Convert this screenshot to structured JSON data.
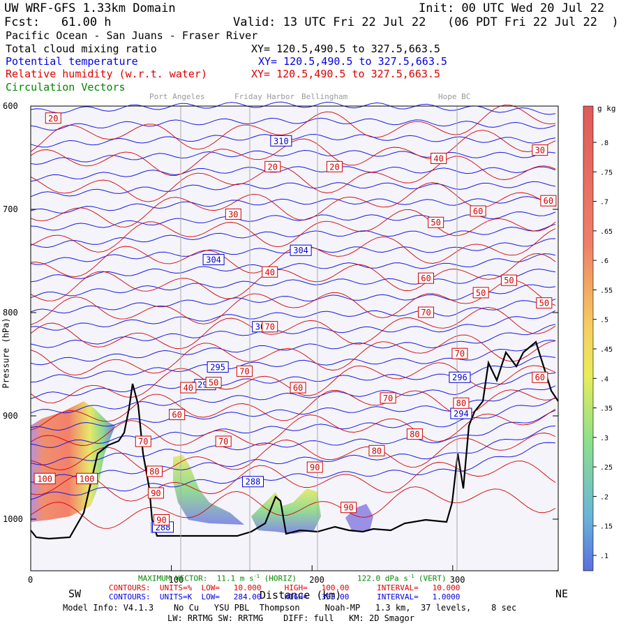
{
  "header": {
    "title": "UW WRF-GFS 1.33km Domain",
    "init": "Init: 00 UTC Wed 20 Jul 22",
    "fcst": "Fcst:   61.00 h",
    "valid": "Valid: 13 UTC Fri 22 Jul 22   (06 PDT Fri 22 Jul 22  )",
    "region": "Pacific Ocean - San Juans - Fraser River",
    "fields": [
      {
        "label": "Total cloud mixing ratio",
        "xy": "XY= 120.5,490.5 to 327.5,663.5",
        "color": "#000000"
      },
      {
        "label": "Potential temperature",
        "xy": "XY= 120.5,490.5 to 327.5,663.5",
        "color": "#0000dd"
      },
      {
        "label": "Relative humidity (w.r.t. water)",
        "xy": "XY= 120.5,490.5 to 327.5,663.5",
        "color": "#dd0000"
      },
      {
        "label": "Circulation Vectors",
        "xy": "",
        "color": "#008800"
      }
    ]
  },
  "places": [
    "Port Angeles",
    "Friday Harbor",
    "Bellingham",
    "Hope BC"
  ],
  "chart_data": {
    "type": "heatmap",
    "xlabel": "Distance (km)",
    "ylabel": "Pressure (hPa)",
    "xlim": [
      0,
      375
    ],
    "ylim": [
      1050,
      600
    ],
    "x_ticks": [
      "0",
      "100",
      "200",
      "300"
    ],
    "y_ticks": [
      "600",
      "700",
      "800",
      "900",
      "1000"
    ],
    "left_dir": "SW",
    "right_dir": "NE",
    "colorbar": {
      "units": "g kg",
      "ticks": [
        ".8",
        ".75",
        ".7",
        ".65",
        ".6",
        ".55",
        ".5",
        ".45",
        ".4",
        ".35",
        ".3",
        ".25",
        ".2",
        ".15",
        ".1"
      ]
    },
    "theta_labels": [
      {
        "x": 178,
        "p": 634,
        "v": "310"
      },
      {
        "x": 192,
        "p": 740,
        "v": "304"
      },
      {
        "x": 130,
        "p": 749,
        "v": "304"
      },
      {
        "x": 165,
        "p": 814,
        "v": "300"
      },
      {
        "x": 133,
        "p": 853,
        "v": "295"
      },
      {
        "x": 124,
        "p": 870,
        "v": "296"
      },
      {
        "x": 305,
        "p": 863,
        "v": "296"
      },
      {
        "x": 306,
        "p": 898,
        "v": "294"
      },
      {
        "x": 158,
        "p": 964,
        "v": "288"
      },
      {
        "x": 94,
        "p": 1008,
        "v": "288"
      }
    ],
    "rh_labels": [
      {
        "x": 16,
        "p": 612,
        "v": "20"
      },
      {
        "x": 172,
        "p": 659,
        "v": "20"
      },
      {
        "x": 216,
        "p": 659,
        "v": "20"
      },
      {
        "x": 290,
        "p": 651,
        "v": "40"
      },
      {
        "x": 362,
        "p": 643,
        "v": "30"
      },
      {
        "x": 318,
        "p": 702,
        "v": "60"
      },
      {
        "x": 368,
        "p": 692,
        "v": "60"
      },
      {
        "x": 144,
        "p": 705,
        "v": "30"
      },
      {
        "x": 288,
        "p": 713,
        "v": "50"
      },
      {
        "x": 170,
        "p": 761,
        "v": "40"
      },
      {
        "x": 281,
        "p": 767,
        "v": "60"
      },
      {
        "x": 340,
        "p": 769,
        "v": "50"
      },
      {
        "x": 320,
        "p": 781,
        "v": "50"
      },
      {
        "x": 365,
        "p": 791,
        "v": "50"
      },
      {
        "x": 281,
        "p": 800,
        "v": "70"
      },
      {
        "x": 170,
        "p": 814,
        "v": "70"
      },
      {
        "x": 305,
        "p": 840,
        "v": "70"
      },
      {
        "x": 152,
        "p": 857,
        "v": "70"
      },
      {
        "x": 130,
        "p": 868,
        "v": "50"
      },
      {
        "x": 112,
        "p": 873,
        "v": "40"
      },
      {
        "x": 190,
        "p": 873,
        "v": "60"
      },
      {
        "x": 254,
        "p": 883,
        "v": "70"
      },
      {
        "x": 362,
        "p": 863,
        "v": "60"
      },
      {
        "x": 306,
        "p": 888,
        "v": "80"
      },
      {
        "x": 104,
        "p": 899,
        "v": "60"
      },
      {
        "x": 273,
        "p": 918,
        "v": "80"
      },
      {
        "x": 137,
        "p": 925,
        "v": "70"
      },
      {
        "x": 80,
        "p": 925,
        "v": "70"
      },
      {
        "x": 246,
        "p": 934,
        "v": "80"
      },
      {
        "x": 88,
        "p": 954,
        "v": "80"
      },
      {
        "x": 202,
        "p": 950,
        "v": "90"
      },
      {
        "x": 10,
        "p": 961,
        "v": "100"
      },
      {
        "x": 40,
        "p": 961,
        "v": "100"
      },
      {
        "x": 89,
        "p": 975,
        "v": "90"
      },
      {
        "x": 226,
        "p": 989,
        "v": "90"
      },
      {
        "x": 93,
        "p": 1001,
        "v": "90"
      }
    ]
  },
  "footer": {
    "max_vector": "MAXIMUM VECTOR:  11.1 m s",
    "max_vector_horiz": " (HORIZ)",
    "max_vector_vert_val": "122.0 dPa s",
    "max_vector_vert": " (VERT)",
    "rh_contours": "CONTOURS:  UNITS=%  LOW=   10.000     HIGH=   100.00      INTERVAL=   10.000",
    "th_contours": "CONTOURS:  UNITS=K  LOW=   284.00     HIGH=   353.00      INTERVAL=   1.0000",
    "model_info": "Model Info: V4.1.3    No Cu   YSU PBL  Thompson     Noah-MP   1.3 km,  37 levels,    8 sec",
    "model_info2": "LW: RRTMG SW: RRTMG    DIFF: full   KM: 2D Smagor"
  }
}
